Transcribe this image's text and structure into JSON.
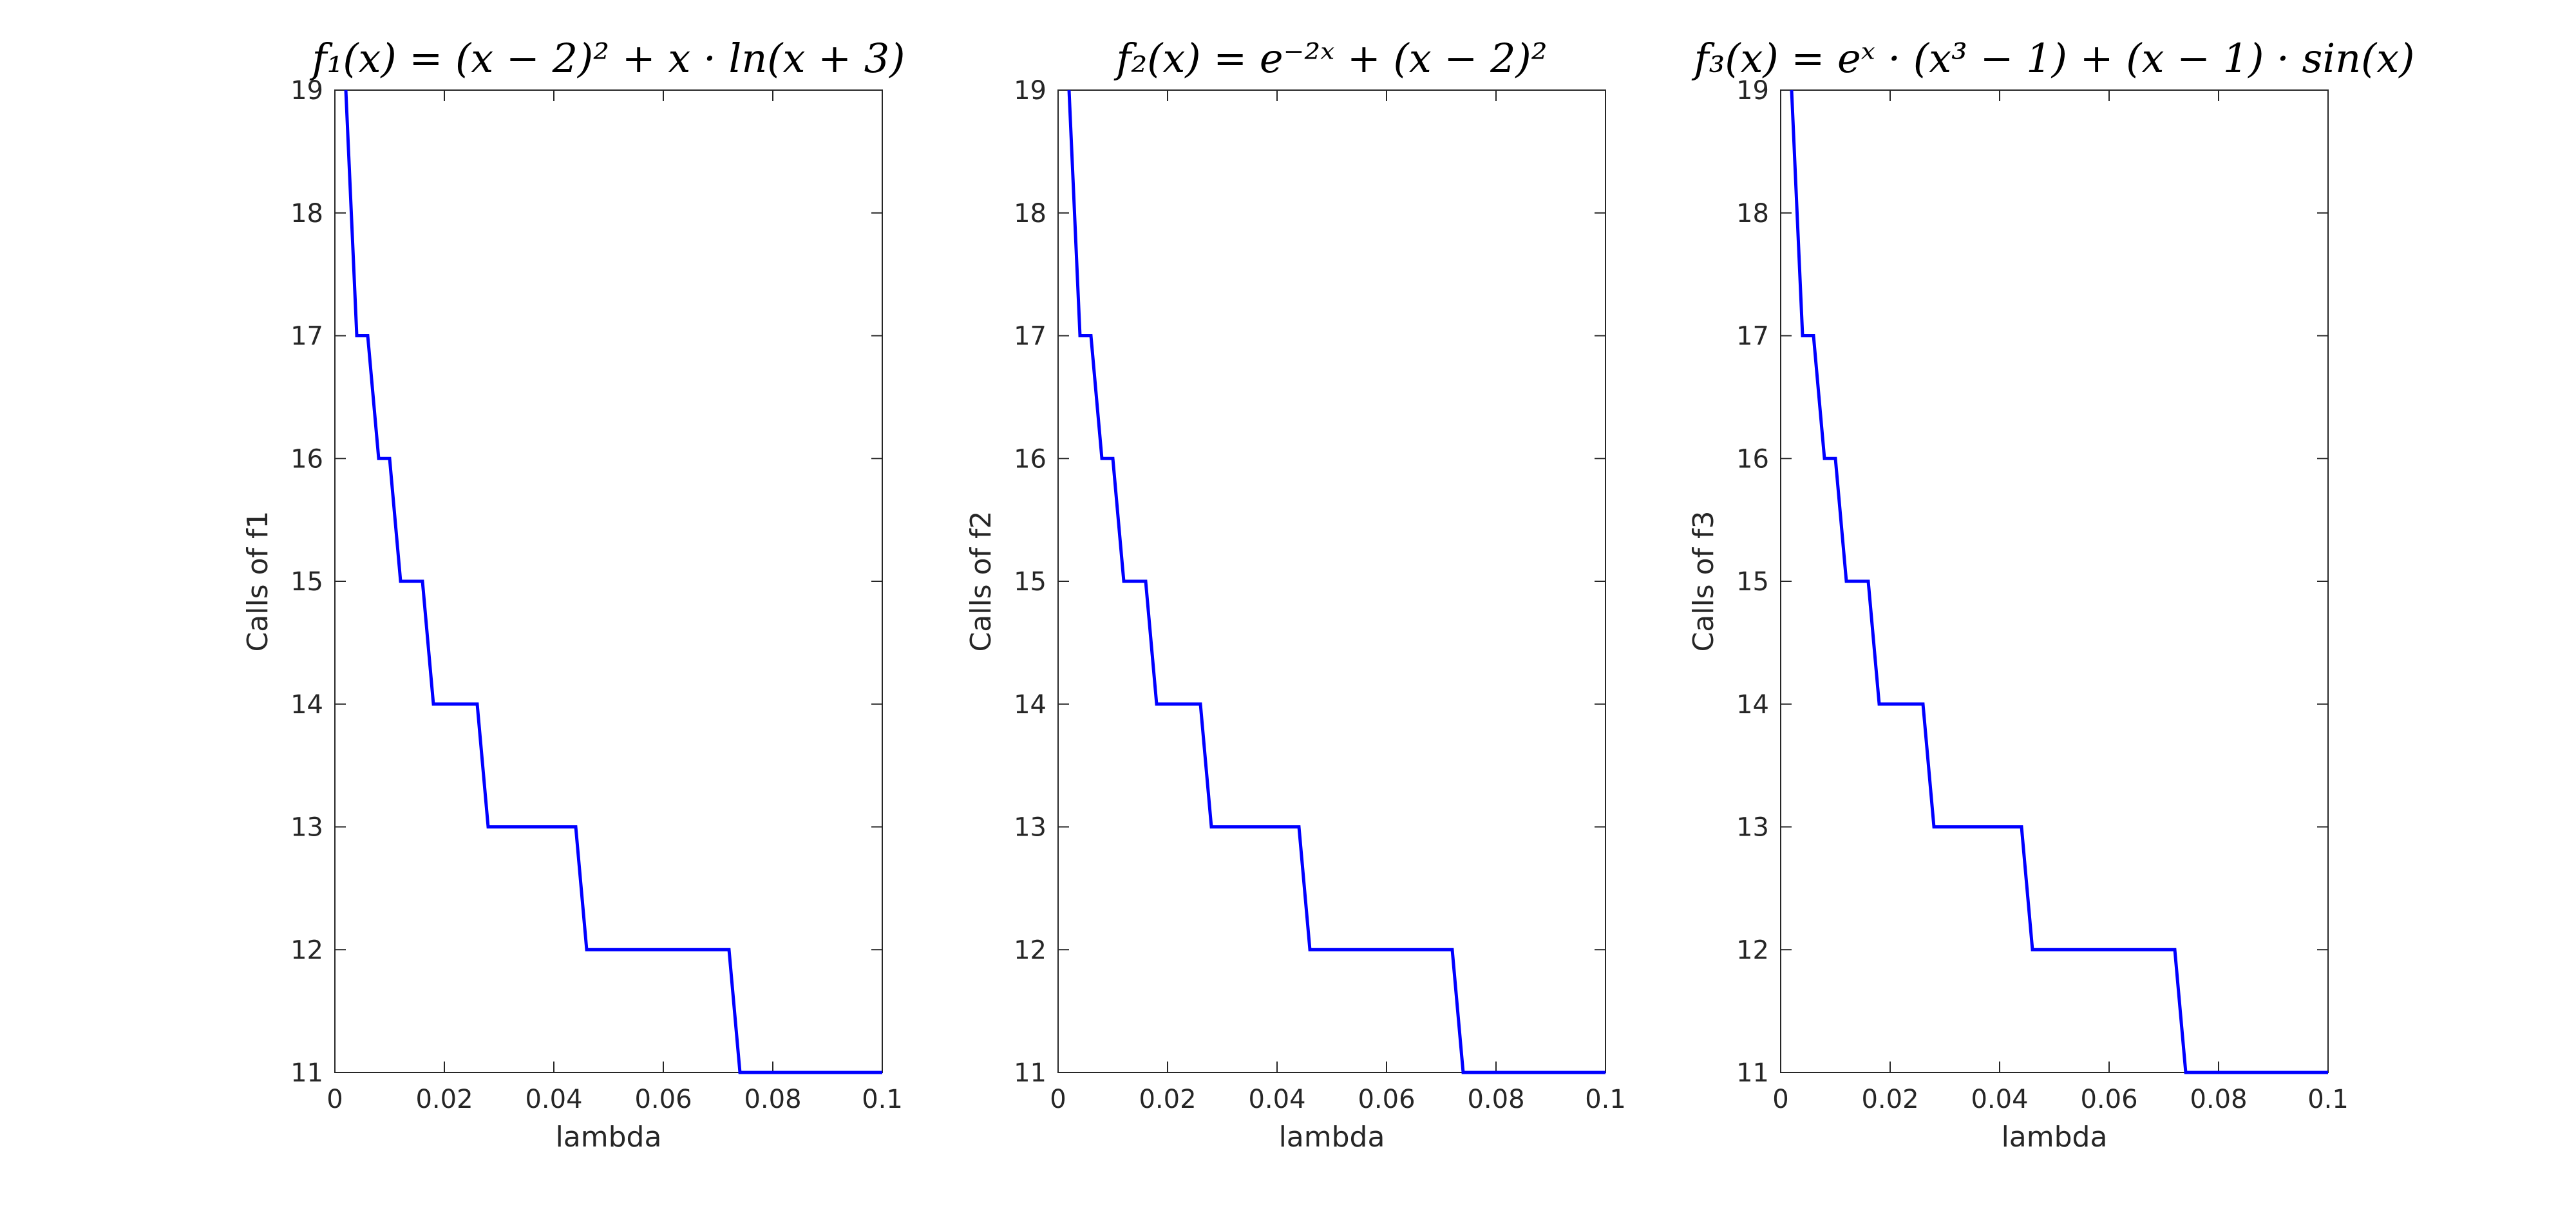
{
  "chart_data": [
    {
      "type": "line",
      "title": "f₁(x) = (x − 2)² + x · ln(x + 3)",
      "xlabel": "lambda",
      "ylabel": "Calls of f1",
      "xlim": [
        0,
        0.1
      ],
      "ylim": [
        11,
        19
      ],
      "xticks": [
        "0",
        "0.02",
        "0.04",
        "0.06",
        "0.08",
        "0.1"
      ],
      "yticks": [
        "11",
        "12",
        "13",
        "14",
        "15",
        "16",
        "17",
        "18",
        "19"
      ],
      "grid": false,
      "color": "#0000ff",
      "x": [
        0.002,
        0.004,
        0.006,
        0.008,
        0.01,
        0.012,
        0.014,
        0.016,
        0.018,
        0.02,
        0.022,
        0.024,
        0.026,
        0.028,
        0.03,
        0.032,
        0.034,
        0.036,
        0.038,
        0.04,
        0.042,
        0.044,
        0.046,
        0.048,
        0.05,
        0.052,
        0.054,
        0.056,
        0.058,
        0.06,
        0.062,
        0.064,
        0.066,
        0.068,
        0.07,
        0.072,
        0.074,
        0.076,
        0.078,
        0.08,
        0.082,
        0.084,
        0.086,
        0.088,
        0.09,
        0.092,
        0.094,
        0.096,
        0.098,
        0.1
      ],
      "y": [
        19,
        17,
        17,
        16,
        16,
        15,
        15,
        15,
        14,
        14,
        14,
        14,
        14,
        13,
        13,
        13,
        13,
        13,
        13,
        13,
        13,
        13,
        12,
        12,
        12,
        12,
        12,
        12,
        12,
        12,
        12,
        12,
        12,
        12,
        12,
        12,
        11,
        11,
        11,
        11,
        11,
        11,
        11,
        11,
        11,
        11,
        11,
        11,
        11,
        11
      ]
    },
    {
      "type": "line",
      "title": "f₂(x) = e⁻²ˣ + (x − 2)²",
      "xlabel": "lambda",
      "ylabel": "Calls of f2",
      "xlim": [
        0,
        0.1
      ],
      "ylim": [
        11,
        19
      ],
      "xticks": [
        "0",
        "0.02",
        "0.04",
        "0.06",
        "0.08",
        "0.1"
      ],
      "yticks": [
        "11",
        "12",
        "13",
        "14",
        "15",
        "16",
        "17",
        "18",
        "19"
      ],
      "grid": false,
      "color": "#0000ff",
      "x": [
        0.002,
        0.004,
        0.006,
        0.008,
        0.01,
        0.012,
        0.014,
        0.016,
        0.018,
        0.02,
        0.022,
        0.024,
        0.026,
        0.028,
        0.03,
        0.032,
        0.034,
        0.036,
        0.038,
        0.04,
        0.042,
        0.044,
        0.046,
        0.048,
        0.05,
        0.052,
        0.054,
        0.056,
        0.058,
        0.06,
        0.062,
        0.064,
        0.066,
        0.068,
        0.07,
        0.072,
        0.074,
        0.076,
        0.078,
        0.08,
        0.082,
        0.084,
        0.086,
        0.088,
        0.09,
        0.092,
        0.094,
        0.096,
        0.098,
        0.1
      ],
      "y": [
        19,
        17,
        17,
        16,
        16,
        15,
        15,
        15,
        14,
        14,
        14,
        14,
        14,
        13,
        13,
        13,
        13,
        13,
        13,
        13,
        13,
        13,
        12,
        12,
        12,
        12,
        12,
        12,
        12,
        12,
        12,
        12,
        12,
        12,
        12,
        12,
        11,
        11,
        11,
        11,
        11,
        11,
        11,
        11,
        11,
        11,
        11,
        11,
        11,
        11
      ]
    },
    {
      "type": "line",
      "title": "f₃(x) = eˣ · (x³ − 1) + (x − 1) · sin(x)",
      "xlabel": "lambda",
      "ylabel": "Calls of f3",
      "xlim": [
        0,
        0.1
      ],
      "ylim": [
        11,
        19
      ],
      "xticks": [
        "0",
        "0.02",
        "0.04",
        "0.06",
        "0.08",
        "0.1"
      ],
      "yticks": [
        "11",
        "12",
        "13",
        "14",
        "15",
        "16",
        "17",
        "18",
        "19"
      ],
      "grid": false,
      "color": "#0000ff",
      "x": [
        0.002,
        0.004,
        0.006,
        0.008,
        0.01,
        0.012,
        0.014,
        0.016,
        0.018,
        0.02,
        0.022,
        0.024,
        0.026,
        0.028,
        0.03,
        0.032,
        0.034,
        0.036,
        0.038,
        0.04,
        0.042,
        0.044,
        0.046,
        0.048,
        0.05,
        0.052,
        0.054,
        0.056,
        0.058,
        0.06,
        0.062,
        0.064,
        0.066,
        0.068,
        0.07,
        0.072,
        0.074,
        0.076,
        0.078,
        0.08,
        0.082,
        0.084,
        0.086,
        0.088,
        0.09,
        0.092,
        0.094,
        0.096,
        0.098,
        0.1
      ],
      "y": [
        19,
        17,
        17,
        16,
        16,
        15,
        15,
        15,
        14,
        14,
        14,
        14,
        14,
        13,
        13,
        13,
        13,
        13,
        13,
        13,
        13,
        13,
        12,
        12,
        12,
        12,
        12,
        12,
        12,
        12,
        12,
        12,
        12,
        12,
        12,
        12,
        11,
        11,
        11,
        11,
        11,
        11,
        11,
        11,
        11,
        11,
        11,
        11,
        11,
        11
      ]
    }
  ]
}
